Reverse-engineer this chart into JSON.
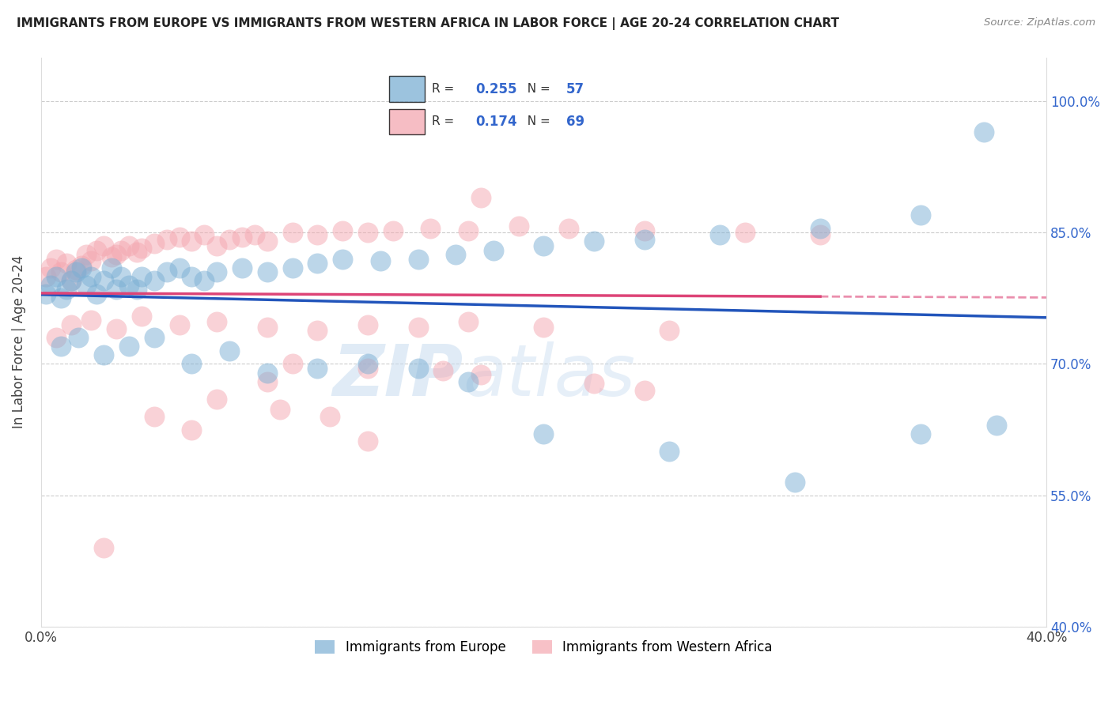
{
  "title": "IMMIGRANTS FROM EUROPE VS IMMIGRANTS FROM WESTERN AFRICA IN LABOR FORCE | AGE 20-24 CORRELATION CHART",
  "source": "Source: ZipAtlas.com",
  "ylabel": "In Labor Force | Age 20-24",
  "xlim": [
    0.0,
    0.4
  ],
  "ylim": [
    0.4,
    1.05
  ],
  "xtick_positions": [
    0.0,
    0.05,
    0.1,
    0.15,
    0.2,
    0.25,
    0.3,
    0.35,
    0.4
  ],
  "xticklabels": [
    "0.0%",
    "",
    "",
    "",
    "",
    "",
    "",
    "",
    "40.0%"
  ],
  "ytick_positions": [
    0.4,
    0.55,
    0.7,
    0.85,
    1.0
  ],
  "yticklabels": [
    "40.0%",
    "55.0%",
    "70.0%",
    "85.0%",
    "100.0%"
  ],
  "legend_blue_r": "0.255",
  "legend_blue_n": "57",
  "legend_pink_r": "0.174",
  "legend_pink_n": "69",
  "blue_color": "#7BAFD4",
  "pink_color": "#F4A7B0",
  "blue_line_color": "#2255BB",
  "pink_line_color": "#DD4477",
  "watermark": "ZIPatlas",
  "blue_dot_label": "Immigrants from Europe",
  "pink_dot_label": "Immigrants from Western Africa",
  "blue_scatter_x": [
    0.002,
    0.004,
    0.006,
    0.008,
    0.01,
    0.012,
    0.014,
    0.016,
    0.018,
    0.02,
    0.022,
    0.025,
    0.028,
    0.03,
    0.032,
    0.035,
    0.038,
    0.04,
    0.045,
    0.05,
    0.055,
    0.06,
    0.065,
    0.07,
    0.08,
    0.09,
    0.1,
    0.11,
    0.12,
    0.135,
    0.15,
    0.165,
    0.18,
    0.2,
    0.22,
    0.24,
    0.27,
    0.31,
    0.35,
    0.375,
    0.008,
    0.015,
    0.025,
    0.035,
    0.045,
    0.06,
    0.075,
    0.09,
    0.11,
    0.13,
    0.15,
    0.17,
    0.2,
    0.25,
    0.3,
    0.35,
    0.38
  ],
  "blue_scatter_y": [
    0.78,
    0.79,
    0.8,
    0.775,
    0.785,
    0.795,
    0.805,
    0.81,
    0.79,
    0.8,
    0.78,
    0.795,
    0.81,
    0.785,
    0.8,
    0.79,
    0.785,
    0.8,
    0.795,
    0.805,
    0.81,
    0.8,
    0.795,
    0.805,
    0.81,
    0.805,
    0.81,
    0.815,
    0.82,
    0.818,
    0.82,
    0.825,
    0.83,
    0.835,
    0.84,
    0.842,
    0.848,
    0.855,
    0.87,
    0.965,
    0.72,
    0.73,
    0.71,
    0.72,
    0.73,
    0.7,
    0.715,
    0.69,
    0.695,
    0.7,
    0.695,
    0.68,
    0.62,
    0.6,
    0.565,
    0.62,
    0.63
  ],
  "pink_scatter_x": [
    0.002,
    0.004,
    0.006,
    0.008,
    0.01,
    0.012,
    0.014,
    0.016,
    0.018,
    0.02,
    0.022,
    0.025,
    0.028,
    0.03,
    0.032,
    0.035,
    0.038,
    0.04,
    0.045,
    0.05,
    0.055,
    0.06,
    0.065,
    0.07,
    0.075,
    0.08,
    0.085,
    0.09,
    0.1,
    0.11,
    0.12,
    0.13,
    0.14,
    0.155,
    0.17,
    0.19,
    0.21,
    0.24,
    0.28,
    0.31,
    0.006,
    0.012,
    0.02,
    0.03,
    0.04,
    0.055,
    0.07,
    0.09,
    0.11,
    0.13,
    0.15,
    0.17,
    0.2,
    0.25,
    0.13,
    0.175,
    0.1,
    0.16,
    0.22,
    0.09,
    0.07,
    0.095,
    0.115,
    0.06,
    0.13,
    0.025,
    0.045,
    0.175,
    0.24
  ],
  "pink_scatter_y": [
    0.8,
    0.81,
    0.82,
    0.805,
    0.815,
    0.795,
    0.808,
    0.812,
    0.825,
    0.818,
    0.83,
    0.835,
    0.822,
    0.825,
    0.83,
    0.835,
    0.828,
    0.832,
    0.838,
    0.842,
    0.845,
    0.84,
    0.848,
    0.835,
    0.842,
    0.845,
    0.848,
    0.84,
    0.85,
    0.848,
    0.852,
    0.85,
    0.852,
    0.855,
    0.852,
    0.858,
    0.855,
    0.852,
    0.85,
    0.848,
    0.73,
    0.745,
    0.75,
    0.74,
    0.755,
    0.745,
    0.748,
    0.742,
    0.738,
    0.745,
    0.742,
    0.748,
    0.742,
    0.738,
    0.695,
    0.688,
    0.7,
    0.692,
    0.678,
    0.68,
    0.66,
    0.648,
    0.64,
    0.625,
    0.612,
    0.49,
    0.64,
    0.89,
    0.67
  ]
}
